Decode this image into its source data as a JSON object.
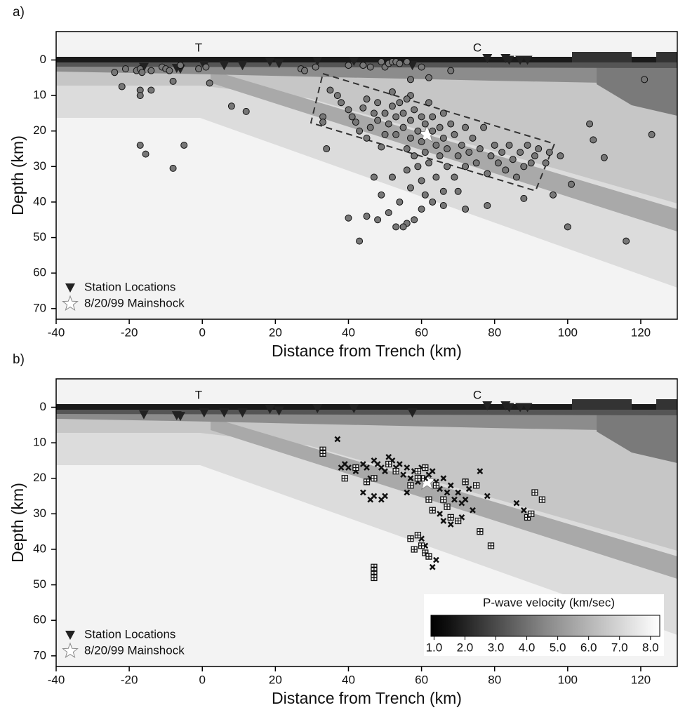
{
  "chart_data": [
    {
      "type": "scatter",
      "panel_label": "a)",
      "xlabel": "Distance from Trench (km)",
      "ylabel": "Depth (km)",
      "annotations": [
        "T",
        "C"
      ],
      "xlim": [
        -40,
        130
      ],
      "xticks": [
        -40,
        -20,
        0,
        20,
        40,
        60,
        80,
        100,
        120
      ],
      "ylim": [
        -8,
        73
      ],
      "yticks": [
        0,
        10,
        20,
        30,
        40,
        50,
        60,
        70
      ],
      "series": [
        {
          "name": "Station Locations",
          "marker": "triangle",
          "color": "#222222",
          "x": [
            -16,
            -7,
            -6,
            0.5,
            6,
            11,
            18.5,
            21,
            31.5,
            41.5,
            57.5,
            78,
            83,
            84,
            87,
            89
          ],
          "values": [
            2,
            2.3,
            2.5,
            1.5,
            1.5,
            1.5,
            0.5,
            1,
            0.3,
            0.3,
            1.5,
            -0.5,
            -0.5,
            0,
            0,
            0
          ]
        },
        {
          "name": "8/20/99 Mainshock",
          "marker": "star",
          "color": "#ffffff",
          "x": [
            61.5
          ],
          "values": [
            21
          ]
        },
        {
          "marker": "circle",
          "color": "#777777",
          "x": [
            -24,
            -22,
            -21,
            -18,
            -17,
            -16.5,
            -17,
            -17,
            -14,
            -14,
            -11,
            -10,
            -9,
            -8,
            -6,
            -1,
            1,
            2,
            8,
            12,
            -17,
            -15.5,
            -5,
            -8,
            27,
            28,
            31,
            40,
            44,
            46,
            49,
            50,
            51,
            52,
            53,
            54,
            56,
            60,
            68,
            57,
            62,
            57,
            121,
            123,
            106,
            107,
            110,
            101,
            100,
            116,
            98,
            33,
            33,
            35,
            37,
            34,
            38,
            40,
            41,
            42,
            43,
            44,
            45,
            45,
            46,
            47,
            48,
            48,
            49,
            50,
            50,
            51,
            52,
            52,
            53,
            53,
            54,
            55,
            55,
            56,
            56,
            57,
            57,
            58,
            58,
            59,
            59,
            60,
            60,
            61,
            61,
            62,
            62,
            63,
            63,
            64,
            64,
            65,
            65,
            66,
            66,
            67,
            67,
            68,
            69,
            69,
            70,
            71,
            72,
            72,
            73,
            74,
            75,
            76,
            77,
            78,
            79,
            80,
            81,
            82,
            83,
            84,
            85,
            86,
            87,
            88,
            89,
            90,
            91,
            92,
            94,
            95,
            96,
            88,
            78,
            70,
            66,
            63,
            60,
            58,
            56,
            55,
            53,
            51,
            48,
            45,
            40,
            43,
            57,
            61,
            66,
            72,
            54,
            49,
            47,
            52,
            56,
            60
          ],
          "values": [
            3.5,
            7.5,
            2.5,
            3,
            2.5,
            3.5,
            8.5,
            10,
            3,
            8.5,
            2,
            2.5,
            3,
            6,
            1.5,
            2.5,
            2,
            6.5,
            13,
            14.5,
            24,
            26.5,
            24,
            30.5,
            2.5,
            3,
            2,
            1.5,
            1.5,
            2,
            0.5,
            2,
            1,
            0.5,
            0.5,
            1,
            0.5,
            2,
            3,
            5.5,
            5,
            10,
            5.5,
            21,
            18,
            22.5,
            27.5,
            35,
            47,
            51,
            27,
            16,
            17.5,
            8.5,
            10,
            25,
            12,
            14,
            16,
            17.5,
            20,
            13.5,
            11,
            22,
            19,
            15,
            17,
            12,
            24.5,
            21,
            15,
            18,
            9,
            13,
            16,
            21,
            12,
            19,
            15,
            11,
            25,
            17,
            22,
            14,
            27,
            20,
            30,
            16,
            23,
            18,
            26,
            12,
            29,
            20,
            16,
            24,
            33,
            19,
            27,
            15,
            22,
            30,
            25,
            18,
            21,
            33,
            27,
            24,
            19,
            30,
            26,
            22,
            29,
            25,
            19,
            32,
            27,
            24,
            29,
            26,
            31,
            24,
            28,
            33,
            26,
            30,
            24,
            29,
            27,
            25,
            29,
            26,
            38,
            39,
            41,
            37,
            37,
            40,
            42,
            45,
            46,
            47,
            47,
            43,
            45,
            44,
            44.5,
            51,
            36,
            38,
            41,
            42,
            40,
            38,
            33,
            33,
            31,
            34
          ]
        }
      ],
      "legend": "lower left"
    },
    {
      "type": "scatter",
      "panel_label": "b)",
      "xlabel": "Distance from Trench (km)",
      "ylabel": "Depth (km)",
      "annotations": [
        "T",
        "C"
      ],
      "xlim": [
        -40,
        130
      ],
      "xticks": [
        -40,
        -20,
        0,
        20,
        40,
        60,
        80,
        100,
        120
      ],
      "ylim": [
        -8,
        73
      ],
      "yticks": [
        0,
        10,
        20,
        30,
        40,
        50,
        60,
        70
      ],
      "series": [
        {
          "name": "Station Locations",
          "marker": "triangle",
          "color": "#222222",
          "x": [
            -16,
            -7,
            -6,
            0.5,
            6,
            11,
            18.5,
            21,
            31.5,
            41.5,
            57.5,
            78,
            83,
            84,
            87,
            89
          ],
          "values": [
            2,
            2.3,
            2.5,
            1.5,
            1.5,
            1.5,
            0.5,
            1,
            0.3,
            0.3,
            1.5,
            -0.5,
            -0.5,
            0,
            0,
            0
          ]
        },
        {
          "name": "8/20/99 Mainshock",
          "marker": "star",
          "color": "#ffffff",
          "x": [
            61.5
          ],
          "values": [
            21
          ]
        },
        {
          "marker": "cross",
          "color": "#111111",
          "x": [
            37,
            38,
            39,
            40,
            42,
            44,
            45,
            46,
            47,
            48,
            49,
            50,
            51,
            52,
            53,
            54,
            55,
            56,
            57,
            58,
            59,
            60,
            61,
            62,
            63,
            64,
            65,
            66,
            67,
            68,
            69,
            70,
            71,
            72,
            73,
            74,
            76,
            78,
            86,
            88,
            63,
            64,
            62,
            61,
            60,
            47,
            49,
            50,
            44,
            46,
            56,
            65,
            66,
            68,
            71
          ],
          "values": [
            9,
            17,
            16,
            17,
            18,
            16,
            17,
            20,
            15,
            16,
            17,
            18,
            14,
            15,
            17,
            16,
            19,
            17,
            20,
            18,
            21,
            17,
            20,
            19,
            18,
            21,
            23,
            20,
            24,
            22,
            26,
            24,
            27,
            26,
            23,
            29,
            18,
            25,
            27,
            29,
            45,
            43,
            42,
            39,
            37,
            25,
            26,
            25,
            24,
            26,
            24,
            30,
            32,
            33,
            31
          ]
        },
        {
          "marker": "boxplus",
          "color": "#111111",
          "x": [
            33,
            33,
            39,
            42,
            45,
            47,
            51,
            53,
            57,
            59,
            60,
            61,
            62,
            63,
            64,
            66,
            67,
            68,
            70,
            72,
            75,
            76,
            79,
            89,
            91,
            90,
            93,
            57,
            58,
            59,
            60,
            61,
            62,
            47,
            47,
            47,
            47,
            59
          ],
          "values": [
            12,
            13,
            20,
            17,
            21,
            20,
            16,
            18,
            22,
            18,
            20,
            17,
            26,
            29,
            22,
            26,
            28,
            31,
            32,
            21,
            22,
            35,
            39,
            31,
            24,
            30,
            26,
            37,
            40,
            36,
            39,
            41,
            42,
            45,
            46,
            47,
            48,
            20
          ]
        }
      ],
      "legend": "lower left",
      "colorbar": {
        "title": "P-wave velocity (km/sec)",
        "lim": [
          0.9,
          8.3
        ],
        "ticks": [
          {
            "value": 1,
            "label": "1.0"
          },
          {
            "value": 2,
            "label": "2.0"
          },
          {
            "value": 3,
            "label": "3.0"
          },
          {
            "value": 4,
            "label": "4.0"
          },
          {
            "value": 5,
            "label": "5.0"
          },
          {
            "value": 6,
            "label": "6.0"
          },
          {
            "value": 7,
            "label": "7.0"
          },
          {
            "value": 8,
            "label": "8.0"
          }
        ]
      }
    }
  ]
}
